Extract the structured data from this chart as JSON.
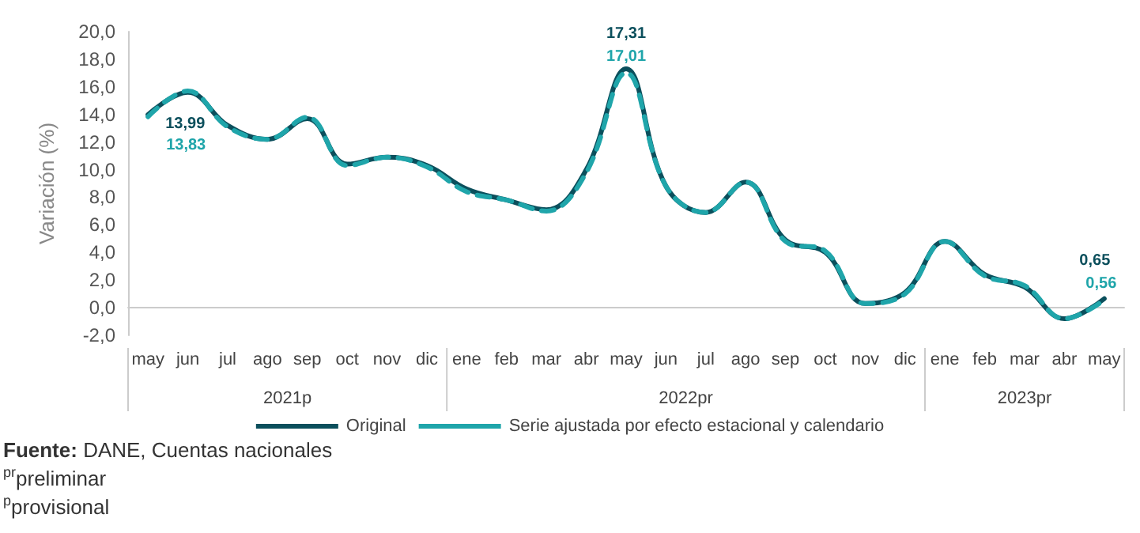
{
  "chart_data": {
    "type": "line",
    "ylabel": "Variación (%)",
    "categories": [
      "may",
      "jun",
      "jul",
      "ago",
      "sep",
      "oct",
      "nov",
      "dic",
      "ene",
      "feb",
      "mar",
      "abr",
      "may",
      "jun",
      "jul",
      "ago",
      "sep",
      "oct",
      "nov",
      "dic",
      "ene",
      "feb",
      "mar",
      "abr",
      "may"
    ],
    "series": [
      {
        "name": "Original",
        "color": "#0b4f5c",
        "line_style": "solid",
        "values": [
          13.99,
          15.6,
          13.2,
          12.2,
          13.7,
          10.4,
          10.9,
          10.3,
          8.6,
          7.8,
          7.1,
          10.0,
          17.31,
          8.8,
          6.9,
          9.1,
          4.9,
          4.0,
          0.3,
          1.1,
          4.8,
          2.4,
          1.5,
          -0.8,
          0.65
        ],
        "value_labels": [
          "13,99",
          null,
          null,
          null,
          null,
          null,
          null,
          null,
          null,
          null,
          null,
          null,
          "17,31",
          null,
          null,
          null,
          null,
          null,
          null,
          null,
          null,
          null,
          null,
          null,
          "0,65"
        ]
      },
      {
        "name": "Serie ajustada por efecto estacional y calendario",
        "color": "#1fa5aa",
        "line_style": "dashed",
        "values": [
          13.83,
          15.7,
          13.1,
          12.2,
          13.8,
          10.3,
          10.9,
          10.2,
          8.4,
          7.8,
          7.0,
          9.8,
          17.01,
          8.8,
          6.9,
          9.1,
          4.8,
          4.1,
          0.3,
          1.0,
          4.8,
          2.3,
          1.6,
          -0.8,
          0.56
        ],
        "value_labels": [
          "13,83",
          null,
          null,
          null,
          null,
          null,
          null,
          null,
          null,
          null,
          null,
          null,
          "17,01",
          null,
          null,
          null,
          null,
          null,
          null,
          null,
          null,
          null,
          null,
          null,
          "0,56"
        ]
      }
    ],
    "ylim": [
      -2,
      20
    ],
    "yticks": [
      {
        "value": -2,
        "label": "-2,0"
      },
      {
        "value": 0,
        "label": "0,0"
      },
      {
        "value": 2,
        "label": "2,0"
      },
      {
        "value": 4,
        "label": "4,0"
      },
      {
        "value": 6,
        "label": "6,0"
      },
      {
        "value": 8,
        "label": "8,0"
      },
      {
        "value": 10,
        "label": "10,0"
      },
      {
        "value": 12,
        "label": "12,0"
      },
      {
        "value": 14,
        "label": "14,0"
      },
      {
        "value": 16,
        "label": "16,0"
      },
      {
        "value": 18,
        "label": "18,0"
      },
      {
        "value": 20,
        "label": "20,0"
      }
    ],
    "grid": false,
    "legend": "bottom",
    "marker": "none",
    "annotations": [
      "2021p",
      "2022pr",
      "2023pr",
      "Fuente: DANE, Cuentas nacionales",
      "$^{pr}$preliminar",
      "$^{p}$provisional"
    ]
  }
}
